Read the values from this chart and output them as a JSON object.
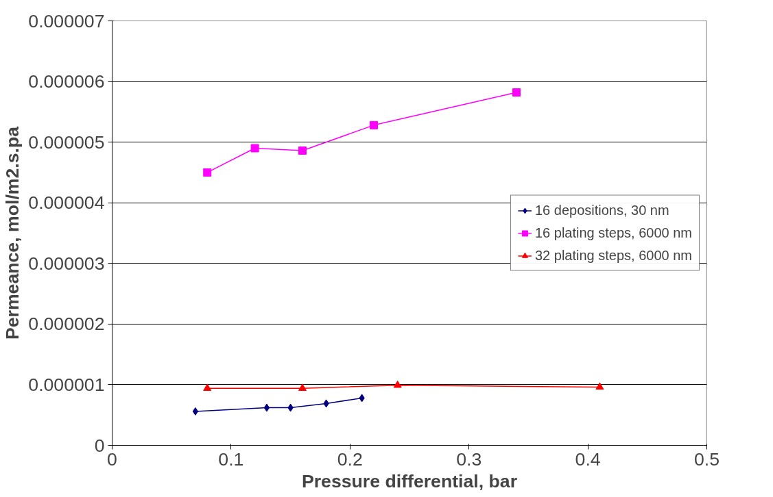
{
  "chart_data": {
    "type": "line",
    "xlabel": "Pressure differential, bar",
    "ylabel": "Permeance, mol/m2.s.pa",
    "series": [
      {
        "name": "16 depositions, 30 nm",
        "color": "#000080",
        "marker": "diamond",
        "x": [
          0.07,
          0.13,
          0.15,
          0.18,
          0.21
        ],
        "values": [
          5.6e-07,
          6.2e-07,
          6.2e-07,
          6.9e-07,
          7.8e-07
        ]
      },
      {
        "name": "16 plating steps, 6000 nm",
        "color": "#ff00ff",
        "marker": "square",
        "x": [
          0.08,
          0.12,
          0.16,
          0.22,
          0.34
        ],
        "values": [
          4.5e-06,
          4.9e-06,
          4.86e-06,
          5.28e-06,
          5.82e-06
        ]
      },
      {
        "name": "32 plating steps, 6000 nm",
        "color": "#ff0000",
        "marker": "triangle",
        "x": [
          0.08,
          0.16,
          0.24,
          0.41
        ],
        "values": [
          9.4e-07,
          9.4e-07,
          9.9e-07,
          9.6e-07
        ]
      }
    ],
    "xlim": [
      0,
      0.5
    ],
    "xticks": [
      0,
      0.1,
      0.2,
      0.3,
      0.4,
      0.5
    ],
    "ylim": [
      0,
      7e-06
    ],
    "yticks": [
      0,
      {
        "value": 1e-06,
        "label": "0.000001"
      },
      {
        "value": 2e-06,
        "label": "0.000002"
      },
      {
        "value": 3e-06,
        "label": "0.000003"
      },
      {
        "value": 4e-06,
        "label": "0.000004"
      },
      {
        "value": 5e-06,
        "label": "0.000005"
      },
      {
        "value": 6e-06,
        "label": "0.000006"
      },
      {
        "value": 7e-06,
        "label": "0.000007"
      }
    ],
    "grid": "y",
    "legend": "right",
    "line_style": "solid"
  }
}
